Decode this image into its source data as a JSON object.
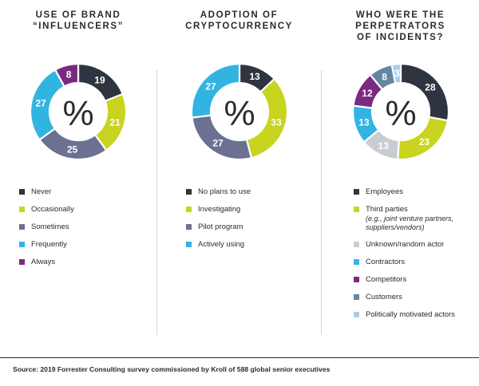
{
  "colors": {
    "dark": "#2e3440",
    "lime": "#c8d41e",
    "slate": "#6c7191",
    "sky": "#32b4e2",
    "purple": "#7b2a82",
    "grey": "#c9ccd1",
    "steel": "#6486a2",
    "paleblue": "#a9cde8"
  },
  "center_symbol": "%",
  "chart_data": [
    {
      "type": "donut",
      "title_lines": [
        "USE OF BRAND",
        "“INFLUENCERS”"
      ],
      "categories": [
        "Never",
        "Occasionally",
        "Sometimes",
        "Frequently",
        "Always"
      ],
      "values": [
        19,
        21,
        25,
        27,
        8
      ],
      "colors": [
        "#2e3440",
        "#c8d41e",
        "#6c7191",
        "#32b4e2",
        "#7b2a82"
      ],
      "legend_placement": "bottom",
      "unit": "%"
    },
    {
      "type": "donut",
      "title_lines": [
        "ADOPTION OF",
        "CRYPTOCURRENCY"
      ],
      "categories": [
        "No plans to use",
        "Investigating",
        "Pilot program",
        "Actively using"
      ],
      "values": [
        13,
        33,
        27,
        27
      ],
      "colors": [
        "#2e3440",
        "#c8d41e",
        "#6c7191",
        "#32b4e2"
      ],
      "legend_placement": "bottom",
      "unit": "%"
    },
    {
      "type": "donut",
      "title_lines": [
        "WHO WERE THE",
        "PERPETRATORS",
        "OF INCIDENTS?"
      ],
      "categories": [
        "Employees",
        "Third parties",
        "Unknown/random actor",
        "Contractors",
        "Competitors",
        "Customers",
        "Politically motivated actors"
      ],
      "category_notes": [
        "",
        "(e.g., joint venture partners, suppliers/vendors)",
        "",
        "",
        "",
        "",
        ""
      ],
      "values": [
        28,
        23,
        13,
        13,
        12,
        8,
        3
      ],
      "colors": [
        "#2e3440",
        "#c8d41e",
        "#c9ccd1",
        "#32b4e2",
        "#7b2a82",
        "#6486a2",
        "#a9cde8"
      ],
      "legend_placement": "bottom",
      "unit": "%"
    }
  ],
  "source": "Source: 2019 Forrester Consulting survey commissioned by Kroll of 588 global senior executives"
}
